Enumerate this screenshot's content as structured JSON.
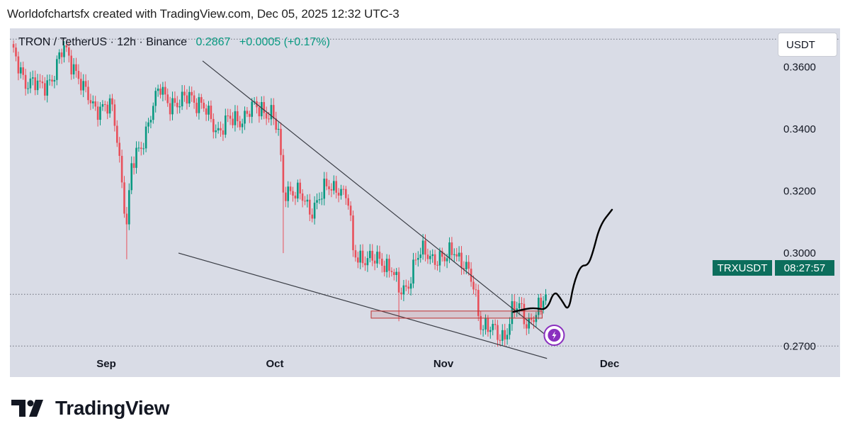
{
  "header": {
    "attribution": "Worldofchartsfx created with TradingView.com, Dec 05, 2025 12:32 UTC-3"
  },
  "legend": {
    "symbol": "TRON / TetherUS · 12h · Binance",
    "last_price": "0.2867",
    "change": "+0.0005 (+0.17%)"
  },
  "toolbar": {
    "currency": "USDT"
  },
  "price_tag": {
    "symbol": "TRXUSDT",
    "countdown": "08:27:57"
  },
  "brand": {
    "name": "TradingView"
  },
  "colors": {
    "panel_bg": "#d9dce6",
    "up_candle": "#089981",
    "down_candle": "#e8505b",
    "price_tag": "#0c6e5c",
    "trendline": "#3a3d45",
    "projection": "#000000",
    "zone": "#c03030",
    "lightning_badge": "#8a2fbf"
  },
  "chart_data": {
    "type": "candlestick",
    "symbol": "TRXUSDT",
    "timeframe": "12h",
    "ylim": [
      0.26,
      0.3725
    ],
    "y_ticks": [
      "0.3600",
      "0.3400",
      "0.3200",
      "0.3000",
      "0.2700"
    ],
    "x_ticks": [
      "Sep",
      "Oct",
      "Nov",
      "Dec"
    ],
    "dotted_levels": [
      0.369,
      0.2867,
      0.27
    ],
    "close_path": [
      [
        0,
        0.365
      ],
      [
        6,
        0.356
      ],
      [
        12,
        0.353
      ],
      [
        18,
        0.358
      ],
      [
        22,
        0.366
      ],
      [
        26,
        0.361
      ],
      [
        30,
        0.352
      ],
      [
        34,
        0.348
      ],
      [
        38,
        0.347
      ],
      [
        42,
        0.346
      ],
      [
        44,
        0.338
      ],
      [
        48,
        0.309
      ],
      [
        50,
        0.327
      ],
      [
        54,
        0.335
      ],
      [
        58,
        0.345
      ],
      [
        62,
        0.353
      ],
      [
        66,
        0.349
      ],
      [
        70,
        0.347
      ],
      [
        74,
        0.352
      ],
      [
        78,
        0.348
      ],
      [
        82,
        0.344
      ],
      [
        86,
        0.34
      ],
      [
        90,
        0.342
      ],
      [
        96,
        0.344
      ],
      [
        100,
        0.346
      ],
      [
        104,
        0.347
      ],
      [
        108,
        0.345
      ],
      [
        111,
        0.338
      ],
      [
        113,
        0.32
      ],
      [
        116,
        0.321
      ],
      [
        120,
        0.318
      ],
      [
        124,
        0.314
      ],
      [
        128,
        0.318
      ],
      [
        132,
        0.321
      ],
      [
        136,
        0.322
      ],
      [
        140,
        0.316
      ],
      [
        142,
        0.3
      ],
      [
        146,
        0.299
      ],
      [
        150,
        0.297
      ],
      [
        154,
        0.298
      ],
      [
        158,
        0.295
      ],
      [
        161,
        0.287
      ],
      [
        164,
        0.289
      ],
      [
        168,
        0.298
      ],
      [
        172,
        0.3
      ],
      [
        176,
        0.299
      ],
      [
        180,
        0.297
      ],
      [
        184,
        0.302
      ],
      [
        188,
        0.296
      ],
      [
        192,
        0.289
      ],
      [
        195,
        0.278
      ],
      [
        198,
        0.276
      ],
      [
        202,
        0.273
      ],
      [
        205,
        0.274
      ],
      [
        208,
        0.281
      ],
      [
        211,
        0.282
      ],
      [
        214,
        0.278
      ],
      [
        217,
        0.28
      ],
      [
        220,
        0.282
      ],
      [
        222,
        0.2867
      ]
    ],
    "wick_spikes": [
      {
        "bar": 48,
        "low": 0.298
      },
      {
        "bar": 113,
        "low": 0.3
      },
      {
        "bar": 161,
        "low": 0.278
      }
    ],
    "trendlines": [
      {
        "name": "upper",
        "start": [
          80,
          0.362
        ],
        "end": [
          225,
          0.272
        ]
      },
      {
        "name": "lower",
        "start": [
          70,
          0.3
        ],
        "end": [
          223,
          0.266
        ]
      }
    ],
    "zone": {
      "bar_start": 150,
      "bar_end": 221,
      "top": 0.2813,
      "bottom": 0.279
    },
    "projection": [
      [
        209,
        0.281
      ],
      [
        214,
        0.282
      ],
      [
        218,
        0.2823
      ],
      [
        223,
        0.2816
      ],
      [
        226,
        0.288
      ],
      [
        229,
        0.285
      ],
      [
        232,
        0.281
      ],
      [
        234,
        0.29
      ],
      [
        237,
        0.296
      ],
      [
        240,
        0.296
      ],
      [
        242,
        0.3
      ],
      [
        245,
        0.309
      ],
      [
        250,
        0.314
      ]
    ]
  }
}
